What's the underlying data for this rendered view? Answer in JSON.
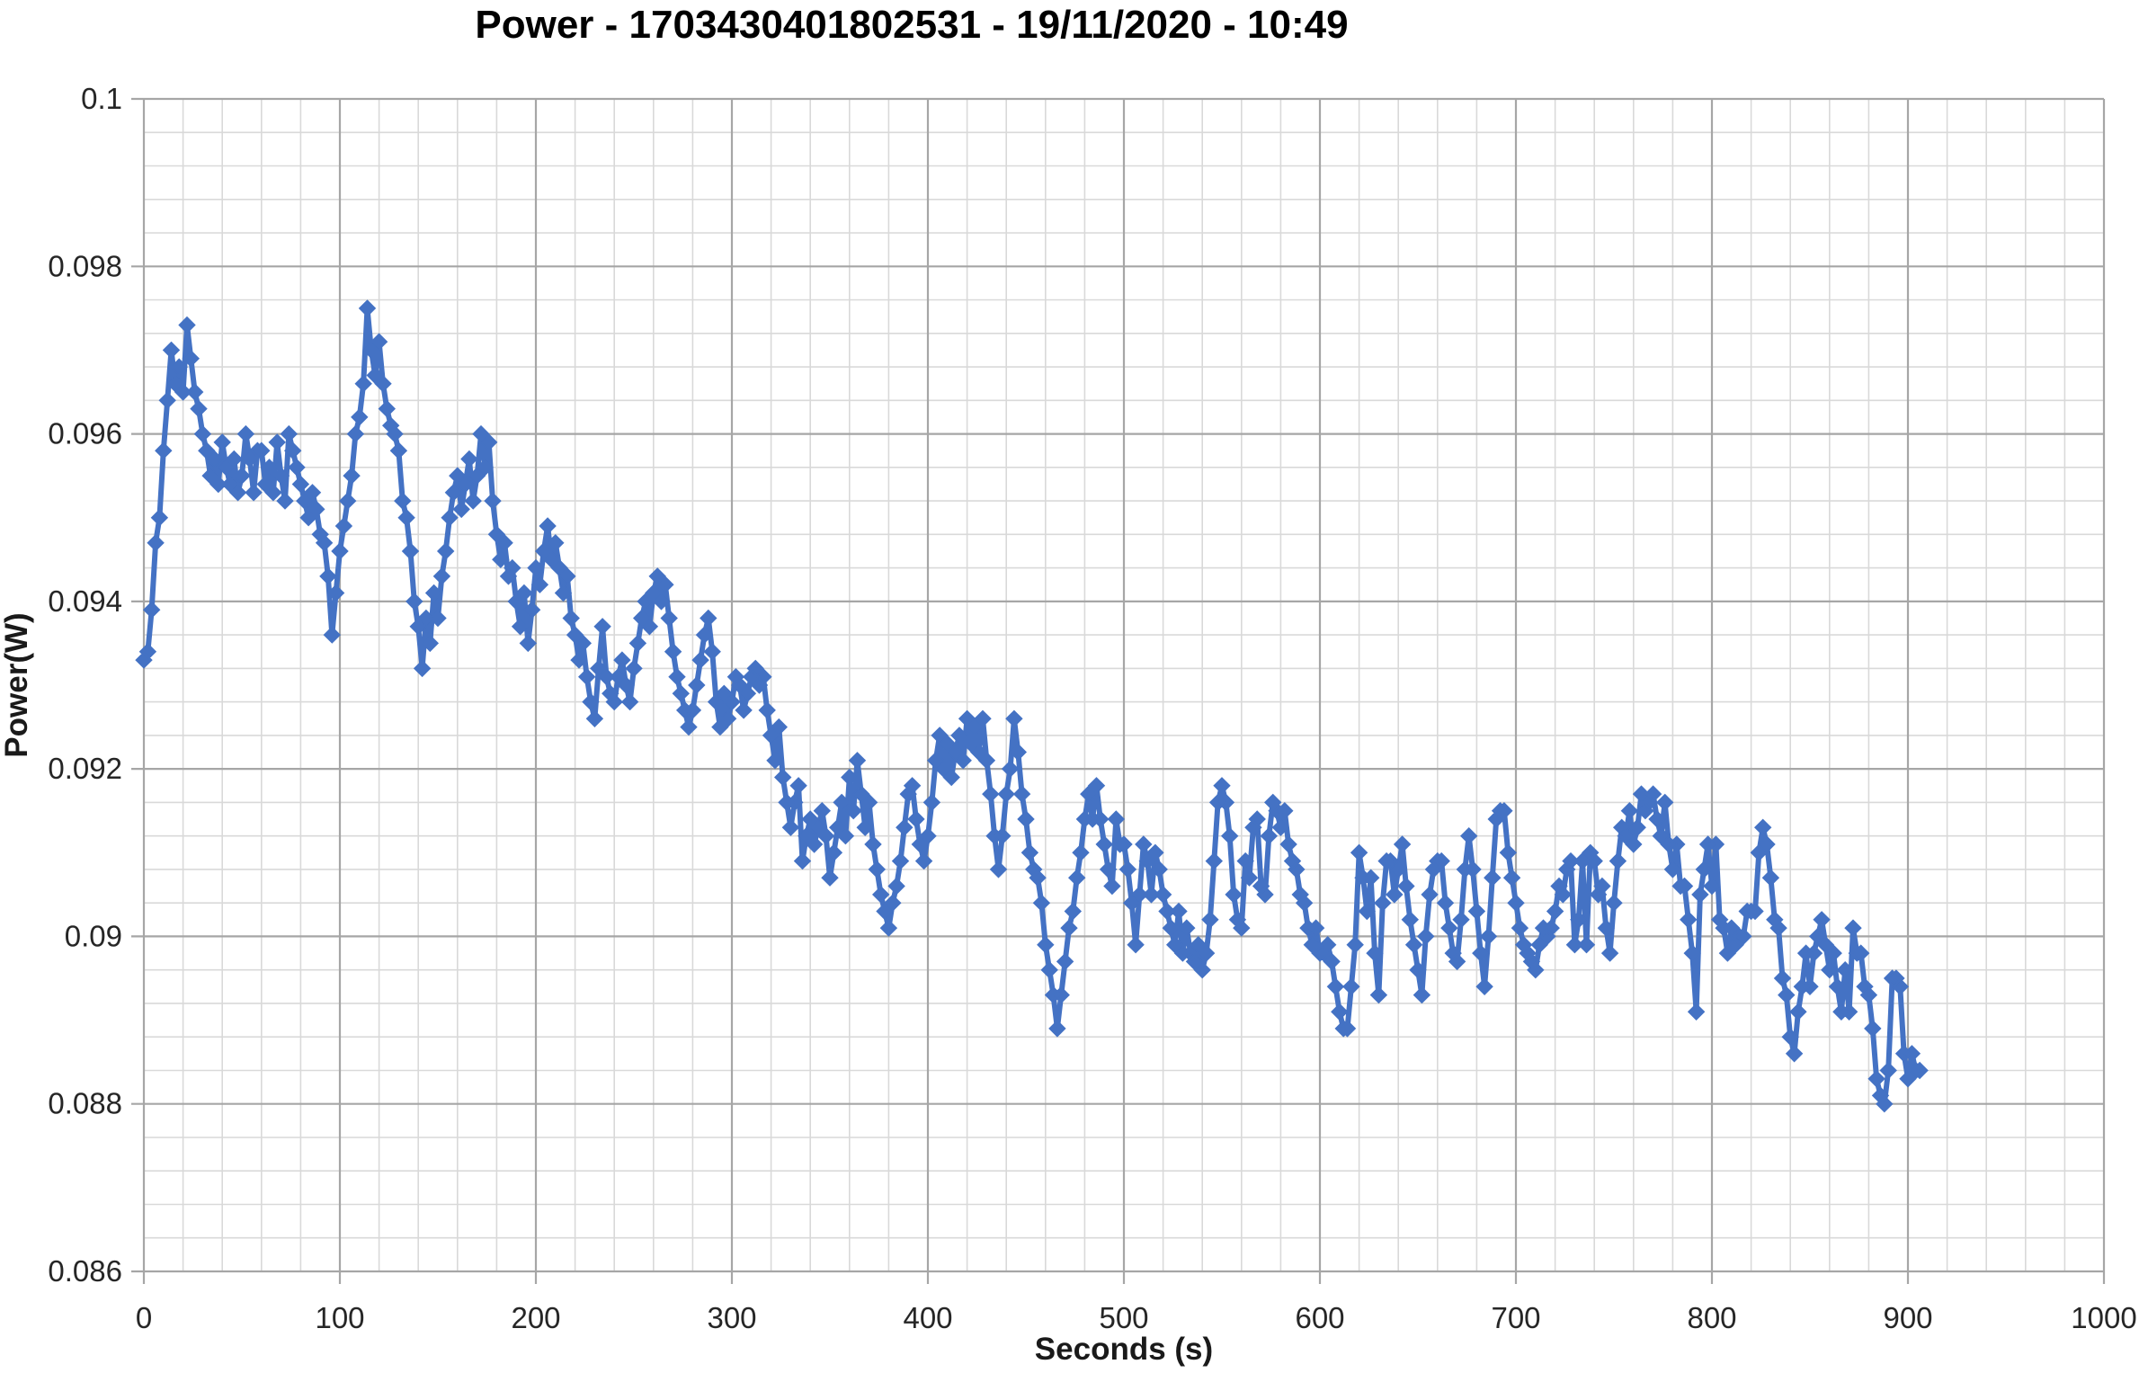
{
  "chart": {
    "title": "Power - 1703430401802531 - 19/11/2020 - 10:49",
    "x_axis_title": "Seconds (s)",
    "y_axis_title": "Power(W)",
    "series_color": "#4472C4",
    "grid_major_color": "#A6A6A6",
    "grid_minor_color": "#D9D9D9",
    "axis_line_color": "#A6A6A6"
  },
  "chart_data": {
    "type": "line",
    "title": "Power - 1703430401802531 - 19/11/2020 - 10:49",
    "xlabel": "Seconds (s)",
    "ylabel": "Power(W)",
    "xlim": [
      0,
      1000
    ],
    "ylim": [
      0.086,
      0.1
    ],
    "grid": true,
    "legend": false,
    "marker": "diamond",
    "x_tick_labels": [
      "0",
      "100",
      "200",
      "300",
      "400",
      "500",
      "600",
      "700",
      "800",
      "900",
      "1000"
    ],
    "x_ticks": [
      0,
      100,
      200,
      300,
      400,
      500,
      600,
      700,
      800,
      900,
      1000
    ],
    "y_tick_labels": [
      "0.1",
      "0.098",
      "0.096",
      "0.094",
      "0.092",
      "0.09",
      "0.088",
      "0.086"
    ],
    "y_ticks": [
      0.1,
      0.098,
      0.096,
      0.094,
      0.092,
      0.09,
      0.088,
      0.086
    ],
    "x_minor_step": 20,
    "y_minor_step": 0.0004,
    "series": [
      {
        "name": "Power",
        "color": "#4472C4",
        "x_start": 0,
        "x_step": 2,
        "values": [
          0.0933,
          0.0934,
          0.0939,
          0.0947,
          0.095,
          0.0958,
          0.0964,
          0.097,
          0.0966,
          0.0968,
          0.0965,
          0.0973,
          0.0969,
          0.0965,
          0.0963,
          0.096,
          0.0958,
          0.0955,
          0.0957,
          0.0954,
          0.0959,
          0.0956,
          0.0954,
          0.0957,
          0.0953,
          0.0955,
          0.096,
          0.0957,
          0.0953,
          0.0958,
          0.0958,
          0.0954,
          0.0956,
          0.0953,
          0.0959,
          0.0955,
          0.0952,
          0.096,
          0.0958,
          0.0956,
          0.0954,
          0.0952,
          0.095,
          0.0953,
          0.0951,
          0.0948,
          0.0947,
          0.0943,
          0.0936,
          0.0941,
          0.0946,
          0.0949,
          0.0952,
          0.0955,
          0.096,
          0.0962,
          0.0966,
          0.0975,
          0.097,
          0.0967,
          0.0971,
          0.0966,
          0.0963,
          0.0961,
          0.096,
          0.0958,
          0.0952,
          0.095,
          0.0946,
          0.094,
          0.0937,
          0.0932,
          0.0938,
          0.0935,
          0.0941,
          0.0938,
          0.0943,
          0.0946,
          0.095,
          0.0953,
          0.0955,
          0.0951,
          0.0954,
          0.0957,
          0.0952,
          0.0955,
          0.096,
          0.0956,
          0.0959,
          0.0952,
          0.0948,
          0.0945,
          0.0947,
          0.0943,
          0.0944,
          0.094,
          0.0937,
          0.0941,
          0.0935,
          0.0939,
          0.0944,
          0.0942,
          0.0946,
          0.0949,
          0.0945,
          0.0947,
          0.0944,
          0.0941,
          0.0943,
          0.0938,
          0.0936,
          0.0933,
          0.0935,
          0.0931,
          0.0928,
          0.0926,
          0.0932,
          0.0937,
          0.0931,
          0.0929,
          0.0928,
          0.0931,
          0.0933,
          0.093,
          0.0928,
          0.0932,
          0.0935,
          0.0938,
          0.094,
          0.0937,
          0.0941,
          0.0943,
          0.094,
          0.0942,
          0.0938,
          0.0934,
          0.0931,
          0.0929,
          0.0927,
          0.0925,
          0.0927,
          0.093,
          0.0933,
          0.0936,
          0.0938,
          0.0934,
          0.0928,
          0.0925,
          0.0929,
          0.0926,
          0.0928,
          0.0931,
          0.093,
          0.0927,
          0.0929,
          0.0931,
          0.0932,
          0.093,
          0.0931,
          0.0927,
          0.0924,
          0.0921,
          0.0925,
          0.0919,
          0.0916,
          0.0913,
          0.0916,
          0.0918,
          0.0909,
          0.0912,
          0.0914,
          0.0911,
          0.0913,
          0.0915,
          0.0912,
          0.0907,
          0.091,
          0.0913,
          0.0916,
          0.0912,
          0.0919,
          0.0915,
          0.0921,
          0.0917,
          0.0913,
          0.0916,
          0.0911,
          0.0908,
          0.0905,
          0.0903,
          0.0901,
          0.0904,
          0.0906,
          0.0909,
          0.0913,
          0.0917,
          0.0918,
          0.0914,
          0.0911,
          0.0909,
          0.0912,
          0.0916,
          0.0921,
          0.0924,
          0.092,
          0.0923,
          0.0919,
          0.0922,
          0.0924,
          0.0921,
          0.0926,
          0.0923,
          0.0925,
          0.0922,
          0.0926,
          0.0921,
          0.0917,
          0.0912,
          0.0908,
          0.0912,
          0.0917,
          0.092,
          0.0926,
          0.0922,
          0.0917,
          0.0914,
          0.091,
          0.0908,
          0.0907,
          0.0904,
          0.0899,
          0.0896,
          0.0893,
          0.0889,
          0.0893,
          0.0897,
          0.0901,
          0.0903,
          0.0907,
          0.091,
          0.0914,
          0.0917,
          0.0914,
          0.0918,
          0.0914,
          0.0911,
          0.0908,
          0.0906,
          0.0914,
          0.0911,
          0.0911,
          0.0908,
          0.0904,
          0.0899,
          0.0905,
          0.0911,
          0.0909,
          0.0905,
          0.091,
          0.0908,
          0.0905,
          0.0903,
          0.0901,
          0.0899,
          0.0903,
          0.0898,
          0.0901,
          0.0898,
          0.0897,
          0.0899,
          0.0896,
          0.0898,
          0.0902,
          0.0909,
          0.0916,
          0.0918,
          0.0916,
          0.0912,
          0.0905,
          0.0902,
          0.0901,
          0.0909,
          0.0907,
          0.0913,
          0.0914,
          0.0906,
          0.0905,
          0.0912,
          0.0916,
          0.0915,
          0.0913,
          0.0915,
          0.0911,
          0.0909,
          0.0908,
          0.0905,
          0.0904,
          0.0901,
          0.0899,
          0.0901,
          0.0898,
          0.0898,
          0.0899,
          0.0897,
          0.0894,
          0.0891,
          0.0889,
          0.0889,
          0.0894,
          0.0899,
          0.091,
          0.0907,
          0.0903,
          0.0907,
          0.0898,
          0.0893,
          0.0904,
          0.0909,
          0.0909,
          0.0905,
          0.0908,
          0.0911,
          0.0906,
          0.0902,
          0.0899,
          0.0896,
          0.0893,
          0.09,
          0.0905,
          0.0908,
          0.0909,
          0.0909,
          0.0904,
          0.0901,
          0.0898,
          0.0897,
          0.0902,
          0.0908,
          0.0912,
          0.0908,
          0.0903,
          0.0898,
          0.0894,
          0.09,
          0.0907,
          0.0914,
          0.0915,
          0.0915,
          0.091,
          0.0907,
          0.0904,
          0.0901,
          0.0899,
          0.0898,
          0.0897,
          0.0896,
          0.0899,
          0.0901,
          0.09,
          0.0901,
          0.0903,
          0.0906,
          0.0905,
          0.0908,
          0.0909,
          0.0899,
          0.0902,
          0.0909,
          0.0899,
          0.091,
          0.0909,
          0.0905,
          0.0906,
          0.0901,
          0.0898,
          0.0904,
          0.0909,
          0.0913,
          0.0912,
          0.0915,
          0.0911,
          0.0913,
          0.0917,
          0.0915,
          0.0916,
          0.0917,
          0.0914,
          0.0912,
          0.0916,
          0.0911,
          0.0908,
          0.0911,
          0.0906,
          0.0906,
          0.0902,
          0.0898,
          0.0891,
          0.0905,
          0.0908,
          0.0911,
          0.0906,
          0.0911,
          0.0902,
          0.0901,
          0.0898,
          0.0901,
          0.0899,
          0.09,
          0.09,
          0.0903,
          0.0903,
          0.0903,
          0.091,
          0.0913,
          0.0911,
          0.0907,
          0.0902,
          0.0901,
          0.0895,
          0.0893,
          0.0888,
          0.0886,
          0.0891,
          0.0894,
          0.0898,
          0.0894,
          0.0898,
          0.09,
          0.0902,
          0.0899,
          0.0896,
          0.0898,
          0.0894,
          0.0891,
          0.0896,
          0.0891,
          0.0901,
          0.0898,
          0.0898,
          0.0894,
          0.0893,
          0.0889,
          0.0883,
          0.0881,
          0.088,
          0.0884,
          0.0895,
          0.0895,
          0.0894,
          0.0886,
          0.0883,
          0.0886,
          0.0884,
          0.0884
        ]
      }
    ]
  }
}
